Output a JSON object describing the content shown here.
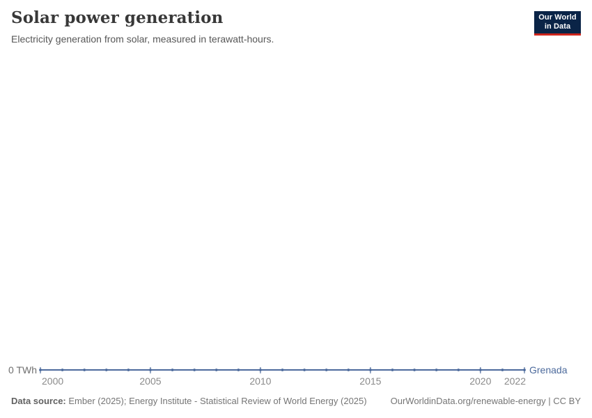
{
  "header": {
    "title": "Solar power generation",
    "subtitle": "Electricity generation from solar, measured in terawatt-hours."
  },
  "logo": {
    "line1": "Our World",
    "line2": "in Data"
  },
  "colors": {
    "line": "#4C6A9C",
    "entity_label": "#4C6A9C",
    "axis_text": "#8a8a8a",
    "y_label_text": "#6e6e6e",
    "logo_bg": "#0A2447",
    "logo_accent": "#CD251C"
  },
  "chart_data": {
    "type": "line",
    "title": "Solar power generation",
    "subtitle": "Electricity generation from solar, measured in terawatt-hours.",
    "unit": "terawatt-hours",
    "x": [
      2000,
      2001,
      2002,
      2003,
      2004,
      2005,
      2006,
      2007,
      2008,
      2009,
      2010,
      2011,
      2012,
      2013,
      2014,
      2015,
      2016,
      2017,
      2018,
      2019,
      2020,
      2021,
      2022
    ],
    "series": [
      {
        "name": "Grenada",
        "values": [
          0,
          0,
          0,
          0,
          0,
          0,
          0,
          0,
          0,
          0,
          0,
          0,
          0,
          0,
          0,
          0,
          0,
          0,
          0,
          0,
          0,
          0,
          0
        ]
      }
    ],
    "x_tick_years": [
      2000,
      2005,
      2010,
      2015,
      2020,
      2022
    ],
    "y_ticks": [
      {
        "value": 0,
        "label": "0 TWh"
      }
    ],
    "xlim": [
      2000,
      2022
    ],
    "ylim": [
      0,
      1
    ],
    "grid": false,
    "legend_position": "end-of-line",
    "markers": true
  },
  "footer": {
    "datasource_label": "Data source:",
    "datasource_text": "Ember (2025); Energy Institute - Statistical Review of World Energy (2025)",
    "link": "OurWorldinData.org/renewable-energy | CC BY"
  }
}
